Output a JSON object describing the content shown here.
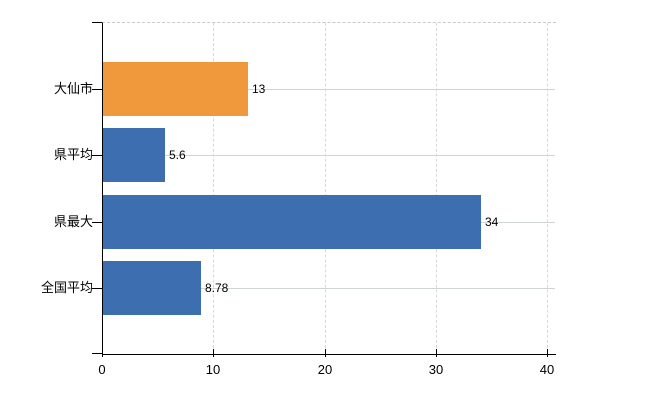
{
  "chart_data": {
    "type": "bar",
    "orientation": "horizontal",
    "title": "",
    "categories": [
      "大仙市",
      "県平均",
      "県最大",
      "全国平均"
    ],
    "values": [
      13,
      5.6,
      34,
      8.78
    ],
    "value_labels": [
      "13",
      "5.6",
      "34",
      "8.78"
    ],
    "bar_colors": [
      "#F0993C",
      "#3D6EAF",
      "#3D6EAF",
      "#3D6EAF"
    ],
    "highlight_category": "大仙市",
    "xlabel": "",
    "ylabel": "",
    "xlim": [
      0,
      40
    ],
    "x_ticks": [
      0,
      10,
      20,
      30,
      40
    ],
    "x_tick_labels": [
      "0",
      "10",
      "20",
      "30",
      "40"
    ],
    "grid": "on",
    "legend": "none"
  },
  "colors": {
    "highlight_bar": "#F0993C",
    "default_bar": "#3D6EAF",
    "axis": "#000000",
    "gridline_horizontal": "#CFD6CF",
    "gridline_vertical": "#D8D8D8",
    "plot_top_border": "#C9C9C9",
    "background": "#FFFFFF",
    "text": "#000000"
  }
}
